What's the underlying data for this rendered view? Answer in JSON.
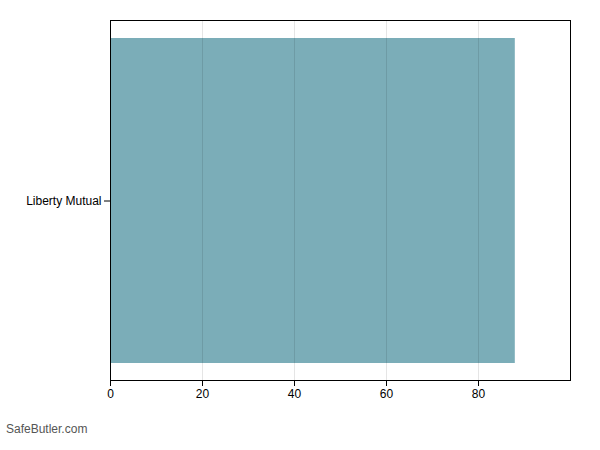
{
  "chart_data": {
    "type": "bar",
    "orientation": "horizontal",
    "categories": [
      "Liberty Mutual"
    ],
    "values": [
      88
    ],
    "color": "#7BADB8",
    "xlim": [
      0,
      100
    ],
    "xticks": [
      0,
      20,
      40,
      60,
      80
    ],
    "grid": true,
    "annotations": [
      "SafeButler.com"
    ]
  }
}
